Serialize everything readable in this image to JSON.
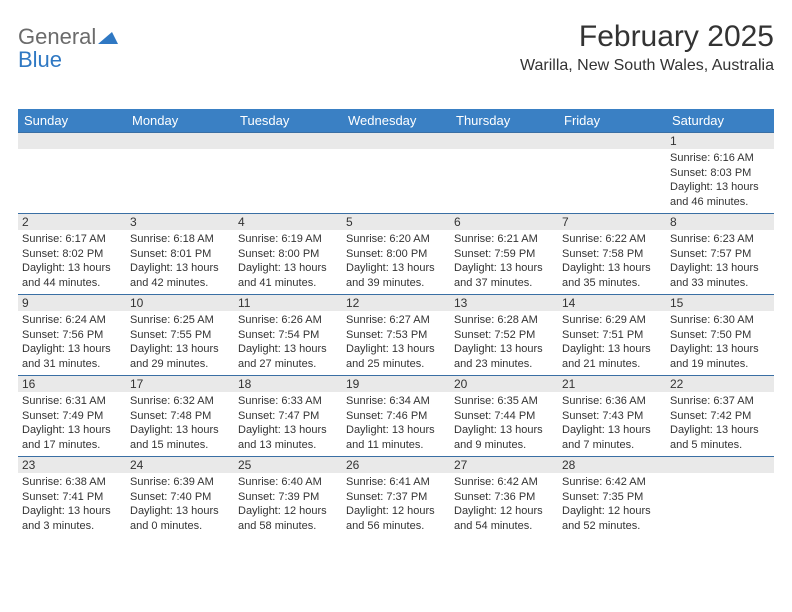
{
  "brand": {
    "word1": "General",
    "word2": "Blue"
  },
  "title": "February 2025",
  "location": "Warilla, New South Wales, Australia",
  "colors": {
    "header_bg": "#3a80c4",
    "header_text": "#ffffff",
    "row_border": "#3a6fa4",
    "daynum_bg": "#e9e9e9",
    "text": "#333333",
    "logo_gray": "#6b6b6b",
    "logo_blue": "#2f78c3",
    "page_bg": "#ffffff"
  },
  "dow": [
    "Sunday",
    "Monday",
    "Tuesday",
    "Wednesday",
    "Thursday",
    "Friday",
    "Saturday"
  ],
  "weeks": [
    [
      null,
      null,
      null,
      null,
      null,
      null,
      {
        "n": "1",
        "lines": [
          "Sunrise: 6:16 AM",
          "Sunset: 8:03 PM",
          "Daylight: 13 hours",
          "and 46 minutes."
        ]
      }
    ],
    [
      {
        "n": "2",
        "lines": [
          "Sunrise: 6:17 AM",
          "Sunset: 8:02 PM",
          "Daylight: 13 hours",
          "and 44 minutes."
        ]
      },
      {
        "n": "3",
        "lines": [
          "Sunrise: 6:18 AM",
          "Sunset: 8:01 PM",
          "Daylight: 13 hours",
          "and 42 minutes."
        ]
      },
      {
        "n": "4",
        "lines": [
          "Sunrise: 6:19 AM",
          "Sunset: 8:00 PM",
          "Daylight: 13 hours",
          "and 41 minutes."
        ]
      },
      {
        "n": "5",
        "lines": [
          "Sunrise: 6:20 AM",
          "Sunset: 8:00 PM",
          "Daylight: 13 hours",
          "and 39 minutes."
        ]
      },
      {
        "n": "6",
        "lines": [
          "Sunrise: 6:21 AM",
          "Sunset: 7:59 PM",
          "Daylight: 13 hours",
          "and 37 minutes."
        ]
      },
      {
        "n": "7",
        "lines": [
          "Sunrise: 6:22 AM",
          "Sunset: 7:58 PM",
          "Daylight: 13 hours",
          "and 35 minutes."
        ]
      },
      {
        "n": "8",
        "lines": [
          "Sunrise: 6:23 AM",
          "Sunset: 7:57 PM",
          "Daylight: 13 hours",
          "and 33 minutes."
        ]
      }
    ],
    [
      {
        "n": "9",
        "lines": [
          "Sunrise: 6:24 AM",
          "Sunset: 7:56 PM",
          "Daylight: 13 hours",
          "and 31 minutes."
        ]
      },
      {
        "n": "10",
        "lines": [
          "Sunrise: 6:25 AM",
          "Sunset: 7:55 PM",
          "Daylight: 13 hours",
          "and 29 minutes."
        ]
      },
      {
        "n": "11",
        "lines": [
          "Sunrise: 6:26 AM",
          "Sunset: 7:54 PM",
          "Daylight: 13 hours",
          "and 27 minutes."
        ]
      },
      {
        "n": "12",
        "lines": [
          "Sunrise: 6:27 AM",
          "Sunset: 7:53 PM",
          "Daylight: 13 hours",
          "and 25 minutes."
        ]
      },
      {
        "n": "13",
        "lines": [
          "Sunrise: 6:28 AM",
          "Sunset: 7:52 PM",
          "Daylight: 13 hours",
          "and 23 minutes."
        ]
      },
      {
        "n": "14",
        "lines": [
          "Sunrise: 6:29 AM",
          "Sunset: 7:51 PM",
          "Daylight: 13 hours",
          "and 21 minutes."
        ]
      },
      {
        "n": "15",
        "lines": [
          "Sunrise: 6:30 AM",
          "Sunset: 7:50 PM",
          "Daylight: 13 hours",
          "and 19 minutes."
        ]
      }
    ],
    [
      {
        "n": "16",
        "lines": [
          "Sunrise: 6:31 AM",
          "Sunset: 7:49 PM",
          "Daylight: 13 hours",
          "and 17 minutes."
        ]
      },
      {
        "n": "17",
        "lines": [
          "Sunrise: 6:32 AM",
          "Sunset: 7:48 PM",
          "Daylight: 13 hours",
          "and 15 minutes."
        ]
      },
      {
        "n": "18",
        "lines": [
          "Sunrise: 6:33 AM",
          "Sunset: 7:47 PM",
          "Daylight: 13 hours",
          "and 13 minutes."
        ]
      },
      {
        "n": "19",
        "lines": [
          "Sunrise: 6:34 AM",
          "Sunset: 7:46 PM",
          "Daylight: 13 hours",
          "and 11 minutes."
        ]
      },
      {
        "n": "20",
        "lines": [
          "Sunrise: 6:35 AM",
          "Sunset: 7:44 PM",
          "Daylight: 13 hours",
          "and 9 minutes."
        ]
      },
      {
        "n": "21",
        "lines": [
          "Sunrise: 6:36 AM",
          "Sunset: 7:43 PM",
          "Daylight: 13 hours",
          "and 7 minutes."
        ]
      },
      {
        "n": "22",
        "lines": [
          "Sunrise: 6:37 AM",
          "Sunset: 7:42 PM",
          "Daylight: 13 hours",
          "and 5 minutes."
        ]
      }
    ],
    [
      {
        "n": "23",
        "lines": [
          "Sunrise: 6:38 AM",
          "Sunset: 7:41 PM",
          "Daylight: 13 hours",
          "and 3 minutes."
        ]
      },
      {
        "n": "24",
        "lines": [
          "Sunrise: 6:39 AM",
          "Sunset: 7:40 PM",
          "Daylight: 13 hours",
          "and 0 minutes."
        ]
      },
      {
        "n": "25",
        "lines": [
          "Sunrise: 6:40 AM",
          "Sunset: 7:39 PM",
          "Daylight: 12 hours",
          "and 58 minutes."
        ]
      },
      {
        "n": "26",
        "lines": [
          "Sunrise: 6:41 AM",
          "Sunset: 7:37 PM",
          "Daylight: 12 hours",
          "and 56 minutes."
        ]
      },
      {
        "n": "27",
        "lines": [
          "Sunrise: 6:42 AM",
          "Sunset: 7:36 PM",
          "Daylight: 12 hours",
          "and 54 minutes."
        ]
      },
      {
        "n": "28",
        "lines": [
          "Sunrise: 6:42 AM",
          "Sunset: 7:35 PM",
          "Daylight: 12 hours",
          "and 52 minutes."
        ]
      },
      null
    ]
  ]
}
